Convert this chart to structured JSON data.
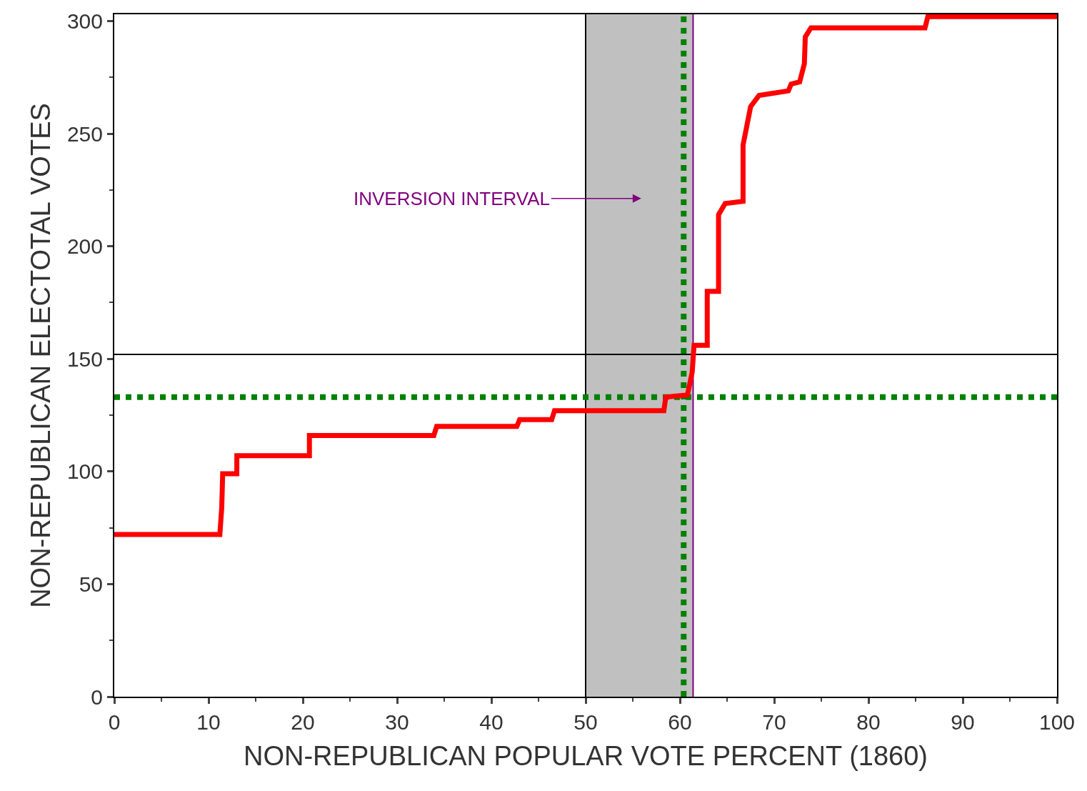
{
  "chart_data": {
    "type": "line",
    "xlabel": "NON-REPUBLICAN POPULAR VOTE PERCENT (1860)",
    "ylabel": "NON-REPUBLICAN ELECTOTAL VOTES",
    "series": [
      {
        "color": "#ff0000",
        "x": [
          0,
          11.2,
          11.4,
          11.5,
          13,
          13,
          20.7,
          20.7,
          33.9,
          34.2,
          42.7,
          43,
          46.4,
          46.7,
          58.3,
          58.5,
          60.8,
          61.3,
          61.5,
          62.9,
          62.9,
          64.1,
          64.1,
          64.8,
          66.7,
          66.7,
          67.5,
          68.4,
          71.5,
          71.8,
          72.7,
          73.2,
          73.3,
          73.9,
          86,
          86.3,
          100
        ],
        "values": [
          72,
          72,
          84,
          99,
          99,
          107,
          107,
          116,
          116,
          120,
          120,
          123,
          123,
          127,
          127,
          133,
          134,
          144,
          156,
          156,
          180,
          180,
          214,
          219,
          220,
          245,
          262,
          267,
          269,
          272,
          273,
          281,
          293,
          297,
          297,
          302,
          302
        ]
      }
    ],
    "xlim": [
      0,
      100
    ],
    "xticks": [
      0,
      10,
      20,
      30,
      40,
      50,
      60,
      70,
      80,
      90,
      100
    ],
    "ylim": [
      0,
      303
    ],
    "yticks": [
      0,
      50,
      100,
      150,
      200,
      250,
      300
    ],
    "grid": false,
    "marker": "none",
    "line_style": "solid",
    "bands": [
      {
        "axis": "x",
        "from": 50,
        "to": 61.4,
        "color": "#c0c0c0"
      }
    ],
    "ref_lines": [
      {
        "axis": "x",
        "value": 50,
        "color": "#000000",
        "line_style": "solid"
      },
      {
        "axis": "y",
        "value": 152,
        "color": "#000000",
        "line_style": "solid"
      },
      {
        "axis": "x",
        "value": 60.4,
        "color": "#008000",
        "line_style": "dotted"
      },
      {
        "axis": "y",
        "value": 133,
        "color": "#008000",
        "line_style": "dotted"
      },
      {
        "axis": "x",
        "value": 61.4,
        "color": "#800080",
        "line_style": "solid"
      }
    ],
    "annotations": [
      "INVERSION INTERVAL"
    ]
  }
}
